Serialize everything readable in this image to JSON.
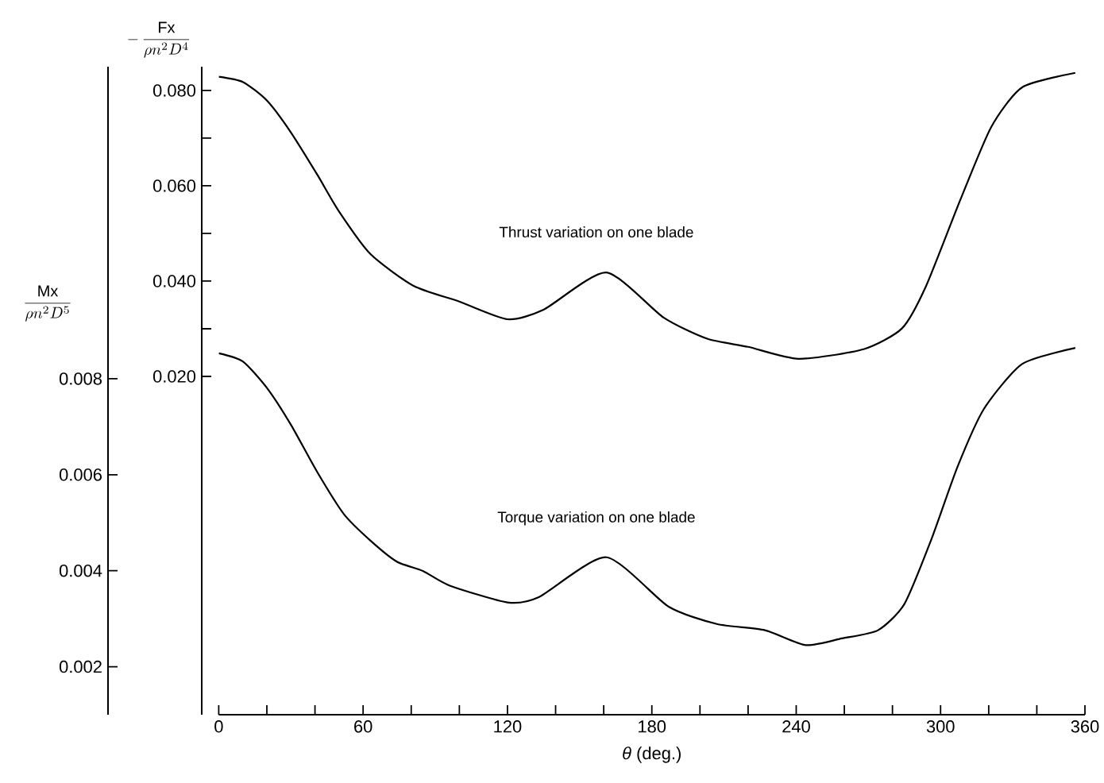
{
  "chart_data": {
    "type": "line",
    "xlabel": "*θ* (deg.)",
    "ylabel": "-\\,\\frac{\\mathrm{Fx}}{\\rho n^{2} D^{4}}",
    "y2label": "\\frac{\\mathrm{Mx}}{\\rho n^{2} D^{5}}",
    "line_style": "solid",
    "grid": false,
    "xlim": [
      0,
      360
    ],
    "xticks": [
      0,
      {
        "value": 20,
        "label": null
      },
      {
        "value": 40,
        "label": null
      },
      60,
      {
        "value": 80,
        "label": null
      },
      {
        "value": 100,
        "label": null
      },
      120,
      {
        "value": 140,
        "label": null
      },
      {
        "value": 160,
        "label": null
      },
      180,
      {
        "value": 200,
        "label": null
      },
      {
        "value": 220,
        "label": null
      },
      240,
      {
        "value": 260,
        "label": null
      },
      {
        "value": 280,
        "label": null
      },
      300,
      {
        "value": 320,
        "label": null
      },
      {
        "value": 340,
        "label": null
      },
      360
    ],
    "ylim": [
      -0.051,
      0.085
    ],
    "yticks": [
      {
        "value": 0.02,
        "label": "0.020"
      },
      {
        "value": 0.03,
        "label": null
      },
      {
        "value": 0.04,
        "label": "0.040"
      },
      {
        "value": 0.05,
        "label": null
      },
      {
        "value": 0.06,
        "label": "0.060"
      },
      {
        "value": 0.07,
        "label": null
      },
      {
        "value": 0.08,
        "label": "0.080"
      }
    ],
    "y2lim": [
      0.001,
      0.0145
    ],
    "y2ticks": [
      {
        "value": 0.002,
        "label": "0.002"
      },
      {
        "value": 0.004,
        "label": "0.004"
      },
      {
        "value": 0.006,
        "label": "0.006"
      },
      {
        "value": 0.008,
        "label": "0.008"
      }
    ],
    "series": [
      {
        "name": "Thrust variation on one blade",
        "color": "#000000",
        "axis": "y",
        "x": [
          0,
          10,
          20,
          30,
          41,
          50,
          63,
          81,
          100,
          120,
          135,
          161,
          185,
          203,
          220,
          241,
          268,
          284,
          294,
          308,
          321,
          334,
          356
        ],
        "values": [
          0.0829,
          0.0818,
          0.0779,
          0.0712,
          0.0623,
          0.0546,
          0.0457,
          0.039,
          0.0357,
          0.032,
          0.034,
          0.0418,
          0.0323,
          0.0279,
          0.0262,
          0.0237,
          0.0257,
          0.0301,
          0.039,
          0.0568,
          0.0723,
          0.0807,
          0.0837
        ]
      },
      {
        "name": "Torque variation on one blade",
        "color": "#000000",
        "axis": "y2",
        "x": [
          0,
          10,
          20,
          30,
          41,
          52,
          63,
          74,
          85,
          96,
          120,
          133,
          161,
          187,
          207,
          227,
          244,
          259,
          274,
          285,
          296,
          307,
          318,
          334,
          356
        ],
        "values": [
          0.00853,
          0.00836,
          0.00781,
          0.00704,
          0.00605,
          0.00518,
          0.00463,
          0.00419,
          0.00399,
          0.00369,
          0.00334,
          0.00345,
          0.00428,
          0.00325,
          0.00289,
          0.00276,
          0.00245,
          0.00259,
          0.00276,
          0.00331,
          0.00463,
          0.00616,
          0.00737,
          0.00831,
          0.00864
        ]
      }
    ]
  }
}
